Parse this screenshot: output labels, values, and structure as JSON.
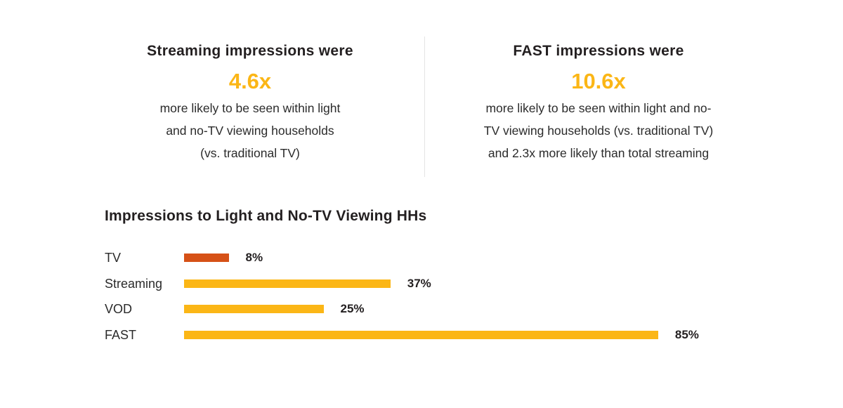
{
  "stats": [
    {
      "heading": "Streaming impressions were",
      "value": "4.6x",
      "description_lines": [
        "more likely to be seen within light",
        "and  no-TV viewing households",
        "(vs. traditional TV)"
      ]
    },
    {
      "heading": "FAST impressions were",
      "value": "10.6x",
      "description_lines": [
        "more likely to be seen within light and no-",
        "TV viewing households (vs. traditional TV)",
        "and 2.3x more likely than total streaming"
      ]
    }
  ],
  "colors": {
    "accent": "#fbb616",
    "tv": "#d65117",
    "text": "#231f20"
  },
  "chart_data": {
    "type": "bar",
    "orientation": "horizontal",
    "title": "Impressions to Light and No-TV Viewing HHs",
    "categories": [
      "TV",
      "Streaming",
      "VOD",
      "FAST"
    ],
    "values": [
      8,
      37,
      25,
      85
    ],
    "value_labels": [
      "8%",
      "37%",
      "25%",
      "85%"
    ],
    "bar_colors": [
      "#d65117",
      "#fbb616",
      "#fbb616",
      "#fbb616"
    ],
    "xlabel": "",
    "ylabel": "",
    "xlim": [
      0,
      100
    ],
    "grid": false,
    "legend": "none"
  }
}
